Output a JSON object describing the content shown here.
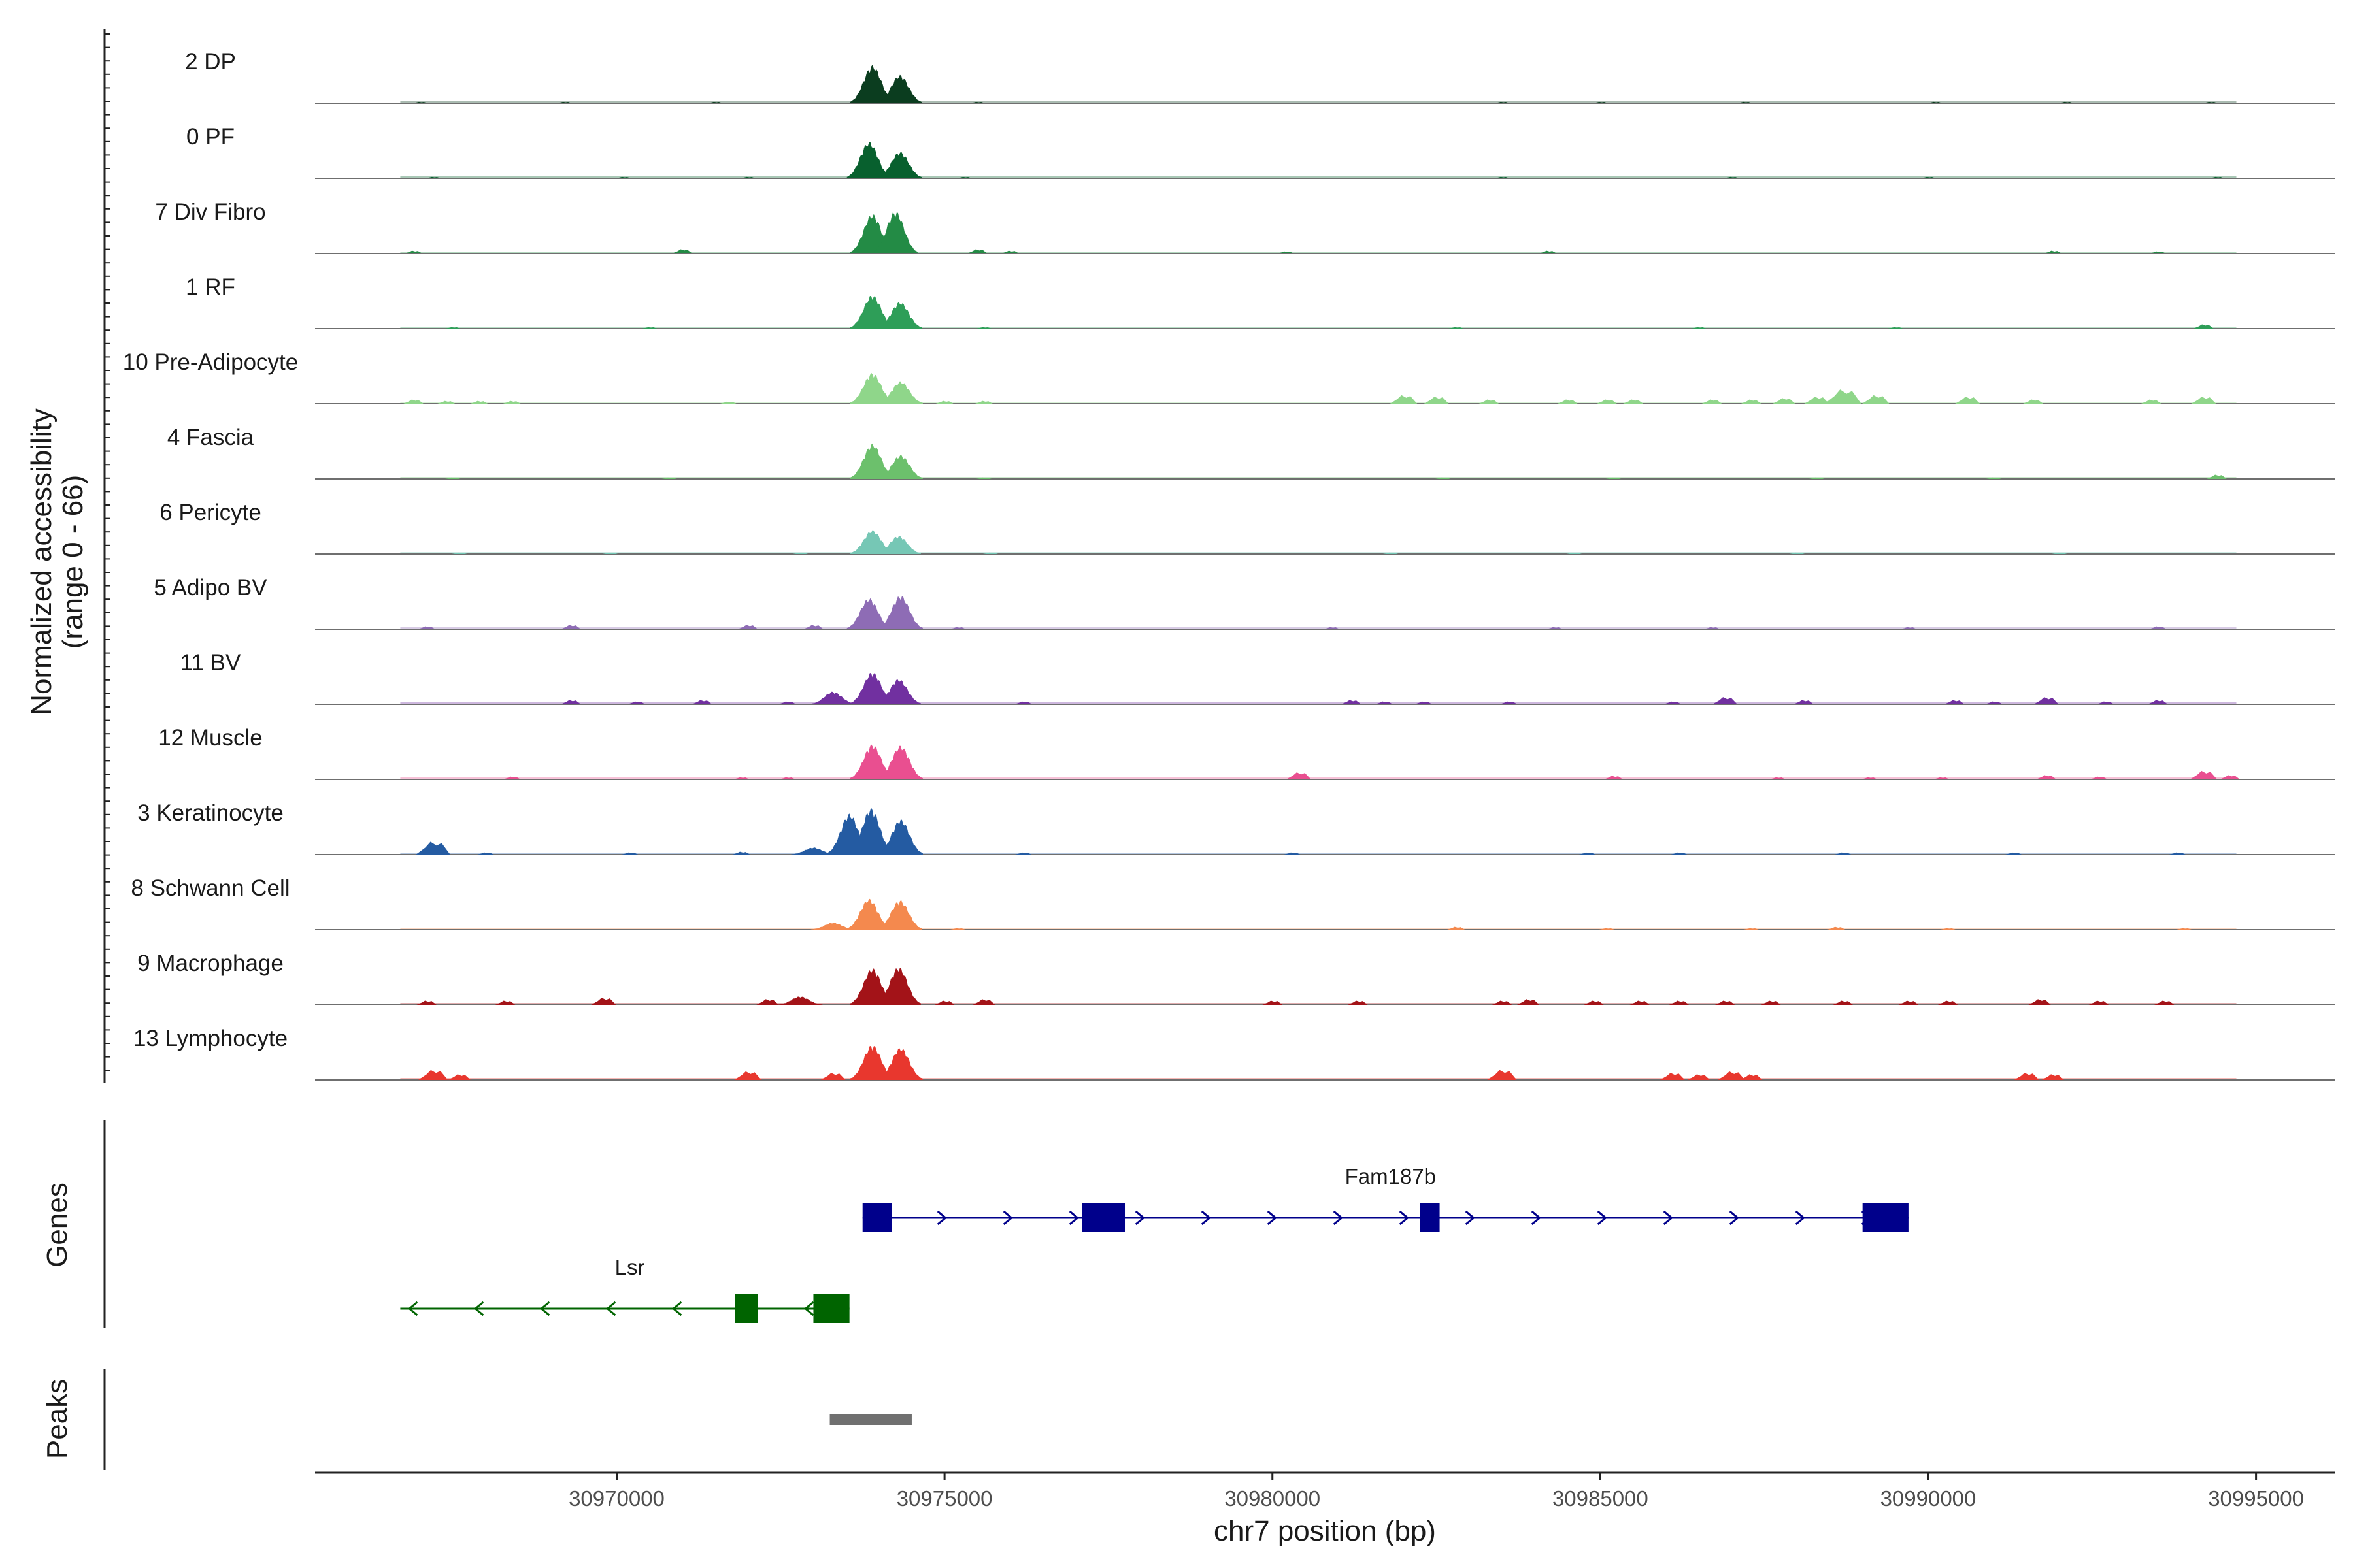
{
  "chart_data": {
    "type": "area",
    "title": "",
    "xlabel": "chr7 position (bp)",
    "ylabel": "Normalized accessibility",
    "ylabel_range": "(range 0 - 66)",
    "xlim": [
      30965400,
      30996200
    ],
    "ylim": [
      0,
      66
    ],
    "x_ticks": [
      30970000,
      30975000,
      30980000,
      30985000,
      30990000,
      30995000
    ],
    "x_tick_labels": [
      "30970000",
      "30975000",
      "30980000",
      "30985000",
      "30990000",
      "30995000"
    ],
    "tracks": [
      {
        "name": "2 DP",
        "color": "#0b3d1f",
        "main_peaks": [
          [
            30973900,
            54
          ],
          [
            30974320,
            40
          ]
        ],
        "minor_peaks": [
          [
            30967000,
            2
          ],
          [
            30969200,
            2
          ],
          [
            30971500,
            2
          ],
          [
            30975500,
            2
          ],
          [
            30983500,
            2
          ],
          [
            30985000,
            2
          ],
          [
            30987200,
            2
          ],
          [
            30990100,
            2
          ],
          [
            30992100,
            2
          ],
          [
            30994300,
            2
          ]
        ]
      },
      {
        "name": "0 PF",
        "color": "#08602e",
        "main_peaks": [
          [
            30973850,
            52
          ],
          [
            30974320,
            38
          ]
        ],
        "minor_peaks": [
          [
            30967200,
            2
          ],
          [
            30970100,
            2
          ],
          [
            30972000,
            2
          ],
          [
            30975300,
            2
          ],
          [
            30983500,
            2
          ],
          [
            30987000,
            2
          ],
          [
            30990000,
            2
          ],
          [
            30994400,
            2
          ]
        ]
      },
      {
        "name": "7 Div Fibro",
        "color": "#238b45",
        "main_peaks": [
          [
            30973900,
            56
          ],
          [
            30974250,
            60
          ]
        ],
        "minor_peaks": [
          [
            30966900,
            4
          ],
          [
            30971000,
            6
          ],
          [
            30975500,
            6
          ],
          [
            30976000,
            4
          ],
          [
            30980200,
            3
          ],
          [
            30984200,
            4
          ],
          [
            30991900,
            4
          ],
          [
            30993500,
            3
          ]
        ]
      },
      {
        "name": "1 RF",
        "color": "#2e9e58",
        "main_peaks": [
          [
            30973900,
            48
          ],
          [
            30974320,
            38
          ]
        ],
        "minor_peaks": [
          [
            30967500,
            2
          ],
          [
            30970500,
            2
          ],
          [
            30975600,
            2
          ],
          [
            30982800,
            2
          ],
          [
            30986500,
            2
          ],
          [
            30989500,
            2
          ],
          [
            30994200,
            6
          ]
        ]
      },
      {
        "name": "10 Pre-Adipocyte",
        "color": "#8fd68a",
        "main_peaks": [
          [
            30973900,
            44
          ],
          [
            30974330,
            32
          ]
        ],
        "minor_peaks": [
          [
            30966900,
            6
          ],
          [
            30967400,
            4
          ],
          [
            30967900,
            4
          ],
          [
            30968400,
            4
          ],
          [
            30971700,
            3
          ],
          [
            30975000,
            4
          ],
          [
            30975600,
            4
          ],
          [
            30982000,
            12
          ],
          [
            30982500,
            10
          ],
          [
            30983300,
            6
          ],
          [
            30984500,
            6
          ],
          [
            30985100,
            6
          ],
          [
            30985500,
            6
          ],
          [
            30986700,
            6
          ],
          [
            30987300,
            6
          ],
          [
            30987800,
            8
          ],
          [
            30988300,
            10
          ],
          [
            30988700,
            20
          ],
          [
            30989200,
            12
          ],
          [
            30990600,
            10
          ],
          [
            30991600,
            6
          ],
          [
            30993400,
            6
          ],
          [
            30994200,
            10
          ]
        ]
      },
      {
        "name": "4 Fascia",
        "color": "#6cc06c",
        "main_peaks": [
          [
            30973900,
            50
          ],
          [
            30974330,
            34
          ]
        ],
        "minor_peaks": [
          [
            30967500,
            2
          ],
          [
            30970800,
            2
          ],
          [
            30975600,
            2
          ],
          [
            30982600,
            2
          ],
          [
            30985200,
            2
          ],
          [
            30988300,
            2
          ],
          [
            30991000,
            2
          ],
          [
            30994400,
            6
          ]
        ]
      },
      {
        "name": "6 Pericyte",
        "color": "#76c7b5",
        "main_peaks": [
          [
            30973900,
            34
          ],
          [
            30974300,
            26
          ]
        ],
        "minor_peaks": [
          [
            30967600,
            2
          ],
          [
            30969900,
            2
          ],
          [
            30972800,
            2
          ],
          [
            30975700,
            2
          ],
          [
            30981800,
            2
          ],
          [
            30984600,
            2
          ],
          [
            30988000,
            2
          ],
          [
            30992000,
            2
          ]
        ]
      },
      {
        "name": "5 Adipo BV",
        "color": "#8e6cb5",
        "main_peaks": [
          [
            30973850,
            44
          ],
          [
            30974330,
            48
          ]
        ],
        "minor_peaks": [
          [
            30967100,
            4
          ],
          [
            30969300,
            6
          ],
          [
            30972000,
            6
          ],
          [
            30973000,
            6
          ],
          [
            30975200,
            3
          ],
          [
            30980900,
            3
          ],
          [
            30984300,
            3
          ],
          [
            30986700,
            3
          ],
          [
            30989700,
            3
          ],
          [
            30993500,
            4
          ]
        ]
      },
      {
        "name": "11 BV",
        "color": "#7130a0",
        "main_peaks": [
          [
            30973900,
            46
          ],
          [
            30974300,
            36
          ],
          [
            30973300,
            18
          ]
        ],
        "minor_peaks": [
          [
            30969300,
            6
          ],
          [
            30970300,
            4
          ],
          [
            30971300,
            6
          ],
          [
            30972600,
            4
          ],
          [
            30976200,
            4
          ],
          [
            30981200,
            6
          ],
          [
            30981700,
            4
          ],
          [
            30982300,
            4
          ],
          [
            30983600,
            4
          ],
          [
            30986100,
            4
          ],
          [
            30986900,
            10
          ],
          [
            30988100,
            6
          ],
          [
            30990400,
            6
          ],
          [
            30991000,
            4
          ],
          [
            30991800,
            10
          ],
          [
            30992700,
            4
          ],
          [
            30993500,
            6
          ]
        ]
      },
      {
        "name": "12 Muscle",
        "color": "#e94f90",
        "main_peaks": [
          [
            30973900,
            50
          ],
          [
            30974330,
            48
          ]
        ],
        "minor_peaks": [
          [
            30968400,
            4
          ],
          [
            30971900,
            3
          ],
          [
            30972600,
            3
          ],
          [
            30980400,
            10
          ],
          [
            30985200,
            5
          ],
          [
            30987700,
            3
          ],
          [
            30989100,
            3
          ],
          [
            30990200,
            3
          ],
          [
            30991800,
            6
          ],
          [
            30992600,
            4
          ],
          [
            30994200,
            12
          ],
          [
            30994600,
            6
          ]
        ]
      },
      {
        "name": "3 Keratinocyte",
        "color": "#245ba2",
        "main_peaks": [
          [
            30973550,
            58
          ],
          [
            30973880,
            66
          ],
          [
            30974330,
            50
          ],
          [
            30973000,
            10
          ]
        ],
        "minor_peaks": [
          [
            30967200,
            18
          ],
          [
            30968000,
            3
          ],
          [
            30970200,
            3
          ],
          [
            30971900,
            4
          ],
          [
            30976200,
            3
          ],
          [
            30980300,
            3
          ],
          [
            30984800,
            3
          ],
          [
            30986200,
            3
          ],
          [
            30988700,
            3
          ],
          [
            30991300,
            3
          ],
          [
            30993800,
            3
          ]
        ]
      },
      {
        "name": "8 Schwann Cell",
        "color": "#f4894e",
        "main_peaks": [
          [
            30973850,
            44
          ],
          [
            30974320,
            42
          ],
          [
            30973300,
            10
          ]
        ],
        "minor_peaks": [
          [
            30975200,
            2
          ],
          [
            30982800,
            4
          ],
          [
            30985100,
            2
          ],
          [
            30987300,
            2
          ],
          [
            30988600,
            4
          ],
          [
            30990300,
            2
          ],
          [
            30993900,
            2
          ]
        ]
      },
      {
        "name": "9 Macrophage",
        "color": "#a31318",
        "main_peaks": [
          [
            30973900,
            52
          ],
          [
            30974300,
            54
          ],
          [
            30972800,
            12
          ]
        ],
        "minor_peaks": [
          [
            30967100,
            6
          ],
          [
            30968300,
            6
          ],
          [
            30969800,
            10
          ],
          [
            30972300,
            8
          ],
          [
            30975000,
            6
          ],
          [
            30975600,
            8
          ],
          [
            30980000,
            6
          ],
          [
            30981300,
            6
          ],
          [
            30983500,
            6
          ],
          [
            30983900,
            8
          ],
          [
            30984900,
            6
          ],
          [
            30985600,
            6
          ],
          [
            30986200,
            6
          ],
          [
            30986900,
            6
          ],
          [
            30987600,
            6
          ],
          [
            30988700,
            6
          ],
          [
            30989700,
            6
          ],
          [
            30990300,
            6
          ],
          [
            30991700,
            8
          ],
          [
            30992600,
            6
          ],
          [
            30993600,
            6
          ]
        ]
      },
      {
        "name": "13 Lymphocyte",
        "color": "#e8372e",
        "main_peaks": [
          [
            30973900,
            50
          ],
          [
            30974330,
            46
          ]
        ],
        "minor_peaks": [
          [
            30967200,
            14
          ],
          [
            30967600,
            8
          ],
          [
            30972000,
            12
          ],
          [
            30973300,
            10
          ],
          [
            30983500,
            14
          ],
          [
            30986100,
            10
          ],
          [
            30986500,
            8
          ],
          [
            30987000,
            12
          ],
          [
            30987300,
            8
          ],
          [
            30991500,
            10
          ],
          [
            30991900,
            8
          ]
        ]
      }
    ],
    "gene_track_label": "Genes",
    "genes": [
      {
        "name": "Fam187b",
        "strand": "+",
        "start": 30973750,
        "end": 30989700,
        "color": "#00008b",
        "exons": [
          [
            30973750,
            30974200
          ],
          [
            30977100,
            30977750
          ],
          [
            30982250,
            30982550
          ],
          [
            30989000,
            30989700
          ]
        ]
      },
      {
        "name": "Lsr",
        "strand": "-",
        "start": 30966700,
        "end": 30973550,
        "color": "#006400",
        "exons": [
          [
            30971800,
            30972150
          ],
          [
            30973000,
            30973550
          ]
        ]
      }
    ],
    "peak_track_label": "Peaks",
    "peaks": [
      [
        30973250,
        30974500
      ]
    ],
    "peak_color": "#707070"
  }
}
